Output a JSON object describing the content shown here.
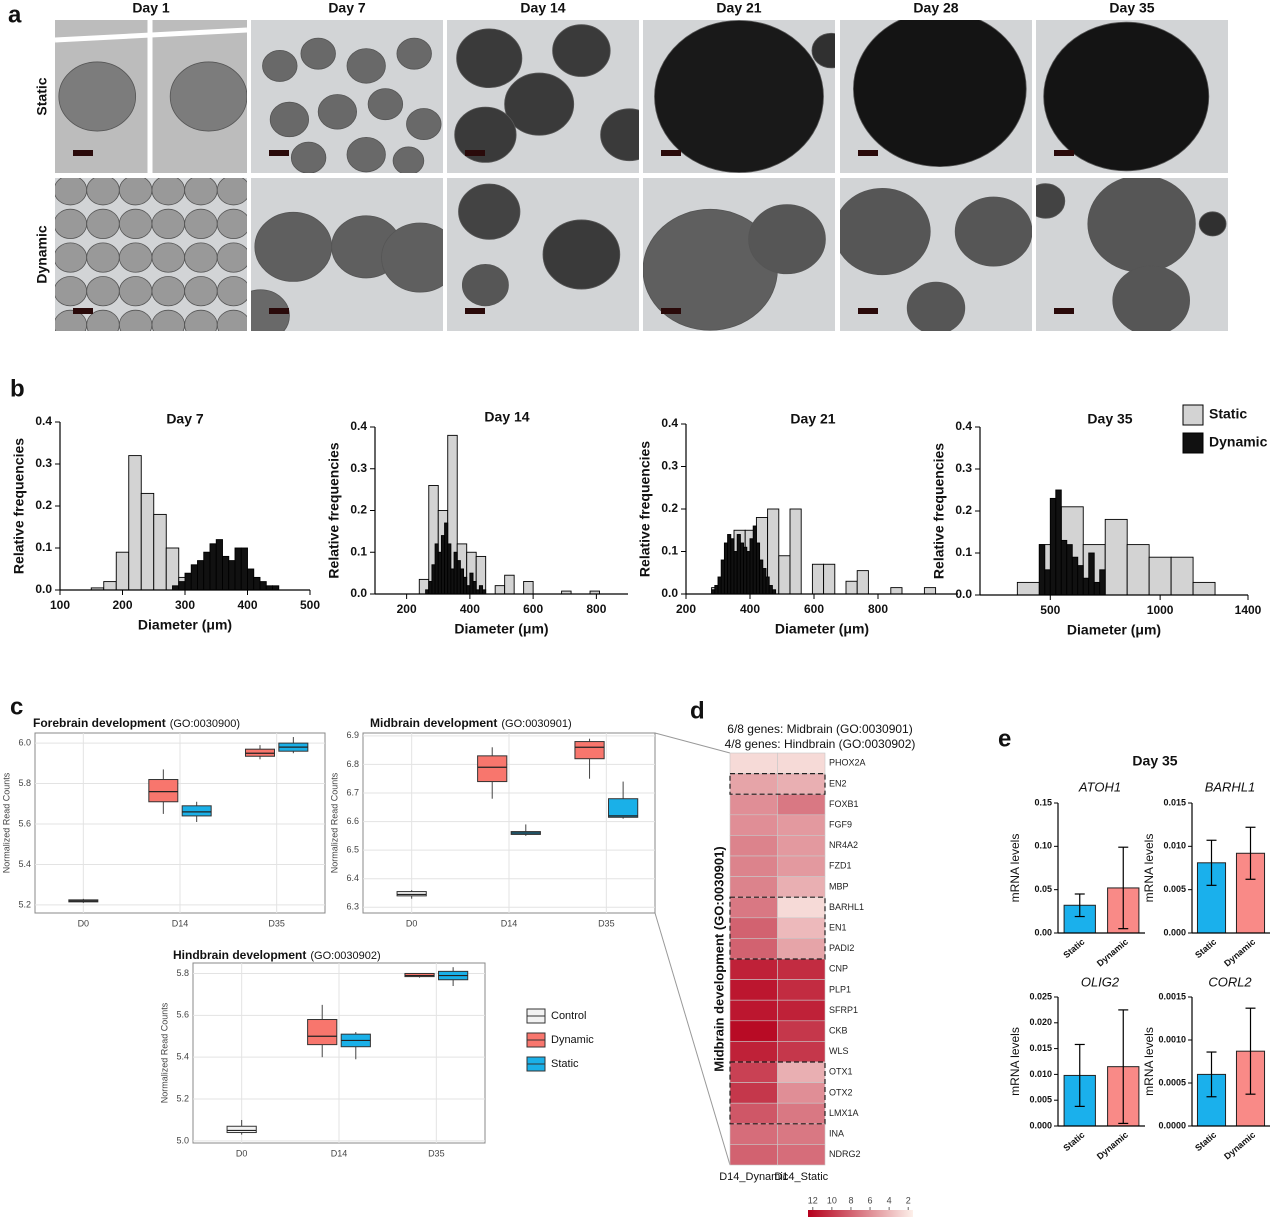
{
  "panel_labels": [
    "a",
    "b",
    "c",
    "d",
    "e"
  ],
  "panel_a": {
    "columns": [
      "Day 1",
      "Day 7",
      "Day 14",
      "Day 21",
      "Day 28",
      "Day 35"
    ],
    "rows": [
      "Static",
      "Dynamic"
    ]
  },
  "panel_e": {
    "title": "Day 35"
  },
  "chart_data": [
    {
      "type": "histogram",
      "title": "Day 7",
      "xlabel": "Diameter (μm)",
      "ylabel": "Relative frequencies",
      "xlim": [
        100,
        500
      ],
      "xticks": [
        100,
        200,
        300,
        400,
        500
      ],
      "ylim": [
        0,
        0.4
      ],
      "yticks": [
        {
          "value": 0,
          "label": "0.0"
        },
        0.1,
        0.2,
        0.3,
        0.4
      ],
      "series": [
        {
          "color": "#d3d3d3",
          "bins": [
            150,
            170,
            190,
            210,
            230,
            250,
            270,
            290,
            310,
            330
          ],
          "values": [
            0.005,
            0.02,
            0.09,
            0.32,
            0.23,
            0.18,
            0.1,
            0.03,
            0.03
          ]
        },
        {
          "color": "#111111",
          "bins": [
            280,
            290,
            300,
            310,
            320,
            330,
            340,
            350,
            360,
            370,
            380,
            390,
            400,
            410,
            420,
            430,
            440,
            450
          ],
          "values": [
            0.01,
            0.02,
            0.04,
            0.06,
            0.07,
            0.09,
            0.11,
            0.12,
            0.08,
            0.07,
            0.1,
            0.1,
            0.05,
            0.03,
            0.02,
            0.01,
            0.01
          ]
        }
      ]
    },
    {
      "type": "histogram",
      "title": "Day 14",
      "xlabel": "Diameter (μm)",
      "ylabel": "Relative frequencies",
      "xlim": [
        100,
        900
      ],
      "xticks": [
        200,
        400,
        600,
        800
      ],
      "ylim": [
        0,
        0.4
      ],
      "yticks": [
        {
          "value": 0,
          "label": "0.0"
        },
        0.1,
        0.2,
        0.3,
        0.4
      ],
      "series": [
        {
          "color": "#d3d3d3",
          "bins": [
            240,
            270,
            300,
            330,
            360,
            390,
            420,
            450,
            480,
            510,
            540,
            570,
            600,
            630,
            660,
            690,
            720,
            750,
            780,
            810
          ],
          "values": [
            0.035,
            0.26,
            0.2,
            0.38,
            0.12,
            0.1,
            0.09,
            0,
            0.02,
            0.045,
            0,
            0.03,
            0,
            0,
            0,
            0.007,
            0,
            0,
            0.007
          ]
        },
        {
          "color": "#111111",
          "bins": [
            260,
            270,
            280,
            290,
            300,
            310,
            320,
            330,
            340,
            350,
            360,
            370,
            380,
            390,
            400,
            410,
            420,
            430,
            440,
            450
          ],
          "values": [
            0.01,
            0.03,
            0.07,
            0.12,
            0.1,
            0.14,
            0.17,
            0.12,
            0.06,
            0.1,
            0.08,
            0.06,
            0.04,
            0.02,
            0.05,
            0.03,
            0.01,
            0.02,
            0.01
          ]
        }
      ]
    },
    {
      "type": "histogram",
      "title": "Day 21",
      "xlabel": "Diameter (μm)",
      "ylabel": "Relative frequencies",
      "xlim": [
        200,
        1050
      ],
      "xticks": [
        200,
        400,
        600,
        800
      ],
      "ylim": [
        0,
        0.4
      ],
      "yticks": [
        {
          "value": 0,
          "label": "0.0"
        },
        0.1,
        0.2,
        0.3,
        0.4
      ],
      "series": [
        {
          "color": "#d3d3d3",
          "bins": [
            280,
            315,
            350,
            385,
            420,
            455,
            490,
            525,
            560,
            595,
            630,
            665,
            700,
            735,
            770,
            805,
            840,
            875,
            910,
            945,
            980
          ],
          "values": [
            0.015,
            0.05,
            0.15,
            0.15,
            0.18,
            0.2,
            0.09,
            0.2,
            0,
            0.07,
            0.07,
            0,
            0.03,
            0.055,
            0,
            0,
            0.015,
            0,
            0,
            0.015
          ]
        },
        {
          "color": "#111111",
          "bins": [
            280,
            290,
            300,
            310,
            320,
            330,
            340,
            350,
            360,
            370,
            380,
            390,
            400,
            410,
            420,
            430,
            440,
            450,
            460,
            470,
            480
          ],
          "values": [
            0.01,
            0.02,
            0.04,
            0.08,
            0.12,
            0.14,
            0.13,
            0.1,
            0.14,
            0.12,
            0.11,
            0.1,
            0.13,
            0.16,
            0.12,
            0.08,
            0.06,
            0.04,
            0.02,
            0.01
          ]
        }
      ]
    },
    {
      "type": "histogram",
      "title": "Day 35",
      "xlabel": "Diameter (μm)",
      "ylabel": "Relative frequencies",
      "xlim": [
        180,
        1400
      ],
      "xticks": [
        500,
        1000,
        1400
      ],
      "ylim": [
        0,
        0.4
      ],
      "yticks": [
        {
          "value": 0,
          "label": "0.0"
        },
        0.1,
        0.2,
        0.3,
        0.4
      ],
      "series": [
        {
          "name": "Static",
          "color": "#d3d3d3",
          "bins": [
            350,
            450,
            550,
            650,
            750,
            850,
            950,
            1050,
            1150,
            1250
          ],
          "values": [
            0.03,
            0.12,
            0.21,
            0.12,
            0.18,
            0.12,
            0.09,
            0.09,
            0.03
          ]
        },
        {
          "name": "Dynamic",
          "color": "#111111",
          "bins": [
            450,
            475,
            500,
            525,
            550,
            575,
            600,
            625,
            650,
            675,
            700,
            725,
            750
          ],
          "values": [
            0.12,
            0.06,
            0.23,
            0.25,
            0.13,
            0.12,
            0.09,
            0.07,
            0.04,
            0.1,
            0.03,
            0.06
          ]
        }
      ]
    },
    {
      "type": "box",
      "title": "Forebrain development",
      "subtitle": "(GO:0030900)",
      "ylabel": "Normalized Read Counts",
      "categories": [
        "D0",
        "D14",
        "D35"
      ],
      "ylim": [
        5.16,
        6.05
      ],
      "yticks": [
        5.2,
        5.4,
        5.6,
        5.8,
        {
          "value": 6,
          "label": "6.0"
        }
      ],
      "grid": true,
      "series": [
        {
          "color": "#f2f2f2",
          "values": [
            [
              5.21,
              5.215,
              5.22,
              5.225,
              5.23
            ],
            null,
            null
          ]
        },
        {
          "color": "#f8766d",
          "values": [
            null,
            [
              5.65,
              5.71,
              5.76,
              5.82,
              5.87
            ],
            [
              5.92,
              5.935,
              5.95,
              5.97,
              5.99
            ]
          ]
        },
        {
          "color": "#1ab0e8",
          "values": [
            null,
            [
              5.61,
              5.64,
              5.66,
              5.69,
              5.71
            ],
            [
              5.95,
              5.96,
              5.98,
              6.0,
              6.03
            ]
          ]
        }
      ]
    },
    {
      "type": "box",
      "title": "Midbrain development",
      "subtitle": "(GO:0030901)",
      "ylabel": "Normalized Read Counts",
      "categories": [
        "D0",
        "D14",
        "D35"
      ],
      "ylim": [
        6.28,
        6.91
      ],
      "yticks": [
        6.3,
        6.4,
        6.5,
        6.6,
        6.7,
        6.8,
        6.9
      ],
      "grid": true,
      "series": [
        {
          "color": "#f2f2f2",
          "values": [
            [
              6.33,
              6.34,
              6.345,
              6.355,
              6.36
            ],
            null,
            null
          ]
        },
        {
          "color": "#f8766d",
          "values": [
            null,
            [
              6.68,
              6.74,
              6.79,
              6.83,
              6.86
            ],
            [
              6.75,
              6.82,
              6.86,
              6.88,
              6.89
            ]
          ]
        },
        {
          "color": "#1ab0e8",
          "values": [
            null,
            [
              6.55,
              6.555,
              6.56,
              6.565,
              6.59
            ],
            [
              6.61,
              6.615,
              6.62,
              6.68,
              6.74
            ]
          ]
        }
      ]
    },
    {
      "type": "box",
      "title": "Hindbrain development",
      "subtitle": "(GO:0030902)",
      "ylabel": "Normalized Read Counts",
      "categories": [
        "D0",
        "D14",
        "D35"
      ],
      "ylim": [
        4.99,
        5.85
      ],
      "yticks": [
        {
          "value": 5,
          "label": "5.0"
        },
        5.2,
        5.4,
        5.6,
        5.8
      ],
      "grid": true,
      "series": [
        {
          "name": "Control",
          "color": "#f2f2f2",
          "values": [
            [
              5.03,
              5.04,
              5.05,
              5.07,
              5.1
            ],
            null,
            null
          ]
        },
        {
          "name": "Dynamic",
          "color": "#f8766d",
          "values": [
            null,
            [
              5.4,
              5.46,
              5.5,
              5.58,
              5.65
            ],
            [
              5.78,
              5.785,
              5.79,
              5.8,
              5.8
            ]
          ]
        },
        {
          "name": "Static",
          "color": "#1ab0e8",
          "values": [
            null,
            [
              5.39,
              5.45,
              5.48,
              5.51,
              5.52
            ],
            [
              5.74,
              5.77,
              5.79,
              5.81,
              5.83
            ]
          ]
        }
      ]
    },
    {
      "type": "heatmap",
      "title_lines": [
        "6/8 genes: Midbrain (GO:0030901)",
        "4/8 genes: Hindbrain (GO:0030902)"
      ],
      "ylabel": "Midbrain development (GO:0030901)",
      "columns": [
        "D14_Dynamic",
        "D14_Static"
      ],
      "rows": [
        "PHOX2A",
        "EN2",
        "FOXB1",
        "FGF9",
        "NR4A2",
        "FZD1",
        "MBP",
        "BARHL1",
        "EN1",
        "PADI2",
        "CNP",
        "PLP1",
        "SFRP1",
        "CKB",
        "WLS",
        "OTX1",
        "OTX2",
        "LMX1A",
        "INA",
        "NDRG2"
      ],
      "values": [
        [
          2.5,
          2.5
        ],
        [
          5,
          4.5
        ],
        [
          6,
          7
        ],
        [
          6,
          5.5
        ],
        [
          6.5,
          5.5
        ],
        [
          6.5,
          5.5
        ],
        [
          6.5,
          4.5
        ],
        [
          7,
          2.5
        ],
        [
          8,
          4
        ],
        [
          8,
          5
        ],
        [
          11,
          10.5
        ],
        [
          11.5,
          10.5
        ],
        [
          11.5,
          11
        ],
        [
          12,
          10
        ],
        [
          11,
          10
        ],
        [
          9.5,
          4.5
        ],
        [
          10,
          6
        ],
        [
          8.5,
          7
        ],
        [
          7.5,
          7
        ],
        [
          8,
          7.5
        ]
      ],
      "clim": [
        1.5,
        12.5
      ],
      "colors": [
        "#fdf0ea",
        "#b5001c"
      ],
      "colorbar_ticks": [
        12,
        10,
        8,
        6,
        4,
        2
      ]
    },
    {
      "type": "bar",
      "title": "ATOH1",
      "ylabel": "mRNA levels",
      "categories": [
        "Static",
        "Dynamic"
      ],
      "colors": [
        "#1ab0ec",
        "#f98a87"
      ],
      "values": [
        0.032,
        0.052
      ],
      "errors": [
        0.013,
        0.047
      ],
      "ylim": [
        0,
        0.15
      ],
      "yticks": [
        {
          "value": 0,
          "label": "0.00"
        },
        0.05,
        {
          "value": 0.1,
          "label": "0.10"
        },
        0.15
      ]
    },
    {
      "type": "bar",
      "title": "BARHL1",
      "ylabel": "mRNA levels",
      "categories": [
        "Static",
        "Dynamic"
      ],
      "colors": [
        "#1ab0ec",
        "#f98a87"
      ],
      "values": [
        0.0081,
        0.0092
      ],
      "errors": [
        0.0026,
        0.003
      ],
      "ylim": [
        0,
        0.015
      ],
      "yticks": [
        {
          "value": 0,
          "label": "0.000"
        },
        0.005,
        {
          "value": 0.01,
          "label": "0.010"
        },
        0.015
      ]
    },
    {
      "type": "bar",
      "title": "OLIG2",
      "ylabel": "mRNA levels",
      "categories": [
        "Static",
        "Dynamic"
      ],
      "colors": [
        "#1ab0ec",
        "#f98a87"
      ],
      "values": [
        0.0098,
        0.0115
      ],
      "errors": [
        0.006,
        0.011
      ],
      "ylim": [
        0,
        0.025
      ],
      "yticks": [
        {
          "value": 0,
          "label": "0.000"
        },
        0.005,
        {
          "value": 0.01,
          "label": "0.010"
        },
        0.015,
        {
          "value": 0.02,
          "label": "0.020"
        },
        0.025
      ]
    },
    {
      "type": "bar",
      "title": "CORL2",
      "ylabel": "mRNA levels",
      "categories": [
        "Static",
        "Dynamic"
      ],
      "colors": [
        "#1ab0ec",
        "#f98a87"
      ],
      "values": [
        0.0006,
        0.00087
      ],
      "errors": [
        0.00026,
        0.0005
      ],
      "ylim": [
        0,
        0.0015
      ],
      "yticks": [
        {
          "value": 0,
          "label": "0.0000"
        },
        0.0005,
        {
          "value": 0.001,
          "label": "0.0010"
        },
        0.0015
      ]
    }
  ]
}
